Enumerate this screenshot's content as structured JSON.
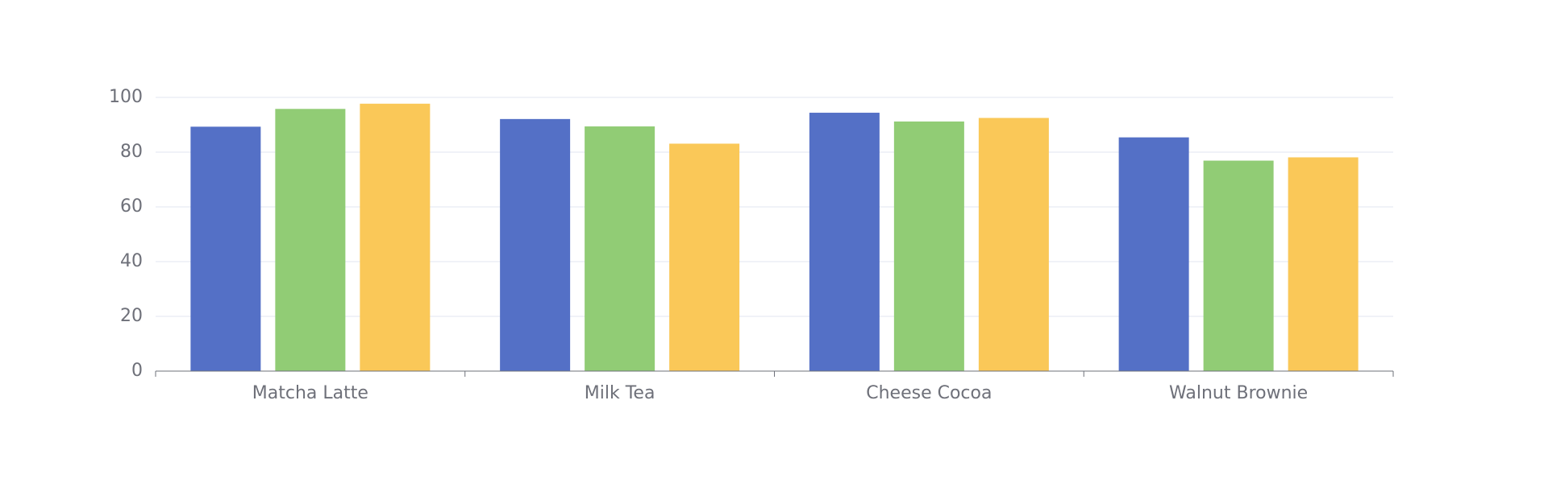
{
  "chart_data": {
    "type": "bar",
    "categories": [
      "Matcha Latte",
      "Milk Tea",
      "Cheese Cocoa",
      "Walnut Brownie"
    ],
    "series": [
      {
        "values": [
          89.3,
          92.1,
          94.4,
          85.4
        ],
        "color": "#5470C6"
      },
      {
        "values": [
          95.8,
          89.4,
          91.2,
          76.9
        ],
        "color": "#91CC75"
      },
      {
        "values": [
          97.7,
          83.1,
          92.5,
          78.1
        ],
        "color": "#FAC858"
      }
    ],
    "yticks": [
      "0",
      "20",
      "40",
      "60",
      "80",
      "100"
    ],
    "ylim": [
      0,
      100
    ],
    "grid": true,
    "title": "",
    "xlabel": "",
    "ylabel": ""
  }
}
